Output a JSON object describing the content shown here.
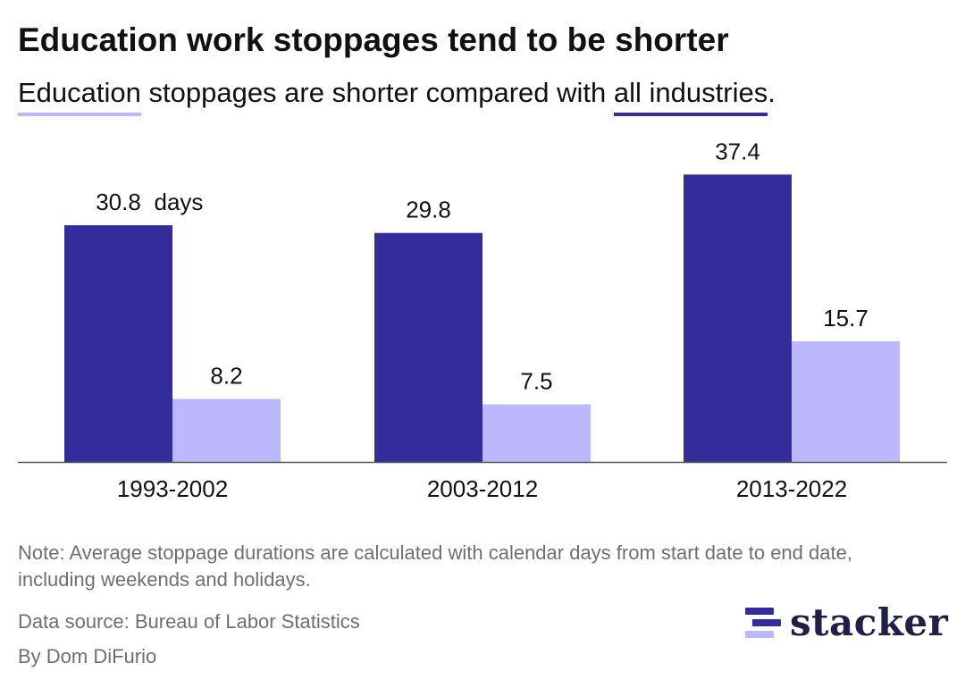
{
  "colors": {
    "all_industries": "#332c9b",
    "education": "#bdb8fc",
    "axis": "#555555",
    "muted_text": "#6f6f6f",
    "logo_dark": "#1f1f4a"
  },
  "header": {
    "title": "Education work stoppages tend to be shorter",
    "subtitle_key_education": "Education",
    "subtitle_mid": " stoppages are shorter compared with ",
    "subtitle_key_all": "all industries",
    "subtitle_end": "."
  },
  "chart_data": {
    "type": "bar",
    "categories": [
      "1993-2002",
      "2003-2012",
      "2013-2022"
    ],
    "series": [
      {
        "name": "all industries",
        "values": [
          30.8,
          29.8,
          37.4
        ]
      },
      {
        "name": "Education",
        "values": [
          8.2,
          7.5,
          15.7
        ]
      }
    ],
    "value_labels": [
      [
        "30.8",
        "29.8",
        "37.4"
      ],
      [
        "8.2",
        "7.5",
        "15.7"
      ]
    ],
    "unit_annotation": "days",
    "ylim": [
      0,
      45
    ],
    "grid": false,
    "legend": "inline in subtitle"
  },
  "footer": {
    "note": "Note: Average stoppage durations are calculated with calendar days from start date to end date, including weekends and holidays.",
    "source": "Data source: Bureau of Labor Statistics",
    "byline": "By Dom DiFurio",
    "logo_text": "stacker",
    "logo_icon": "stacker-stripes-icon"
  }
}
